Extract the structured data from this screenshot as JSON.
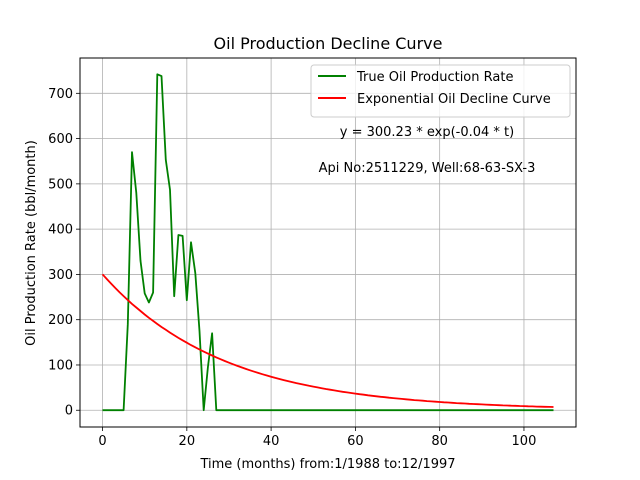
{
  "chart_data": {
    "type": "line",
    "title": "Oil Production Decline Curve",
    "xlabel": "Time (months) from:1/1988 to:12/1997",
    "ylabel": "Oil Production Rate (bbl/month)",
    "xlim": [
      -5.35,
      112.35
    ],
    "ylim": [
      -37,
      778
    ],
    "xticks": [
      0,
      20,
      40,
      60,
      80,
      100
    ],
    "yticks": [
      0,
      100,
      200,
      300,
      400,
      500,
      600,
      700
    ],
    "grid": true,
    "legend_position": "upper-right",
    "annotations": [
      "y = 300.23 * exp(-0.04 * t)",
      "Api No:2511229, Well:68-63-SX-3"
    ],
    "series": [
      {
        "name": "True Oil Production Rate",
        "color": "#008000",
        "x": [
          0,
          1,
          2,
          3,
          4,
          5,
          6,
          7,
          8,
          9,
          10,
          11,
          12,
          13,
          14,
          15,
          16,
          17,
          18,
          19,
          20,
          21,
          22,
          23,
          24,
          25,
          26,
          27,
          28,
          30,
          40,
          60,
          80,
          100,
          107
        ],
        "y": [
          0,
          0,
          0,
          0,
          0,
          0,
          190,
          570,
          480,
          330,
          258,
          238,
          260,
          742,
          738,
          553,
          487,
          252,
          387,
          385,
          243,
          371,
          303,
          175,
          0,
          95,
          170,
          0,
          0,
          0,
          0,
          0,
          0,
          0,
          0
        ]
      },
      {
        "name": "Exponential Oil Decline Curve",
        "color": "#ff0000",
        "model": {
          "a": 300.23,
          "b": -0.035,
          "x_start": 0,
          "x_end": 107
        }
      }
    ]
  }
}
